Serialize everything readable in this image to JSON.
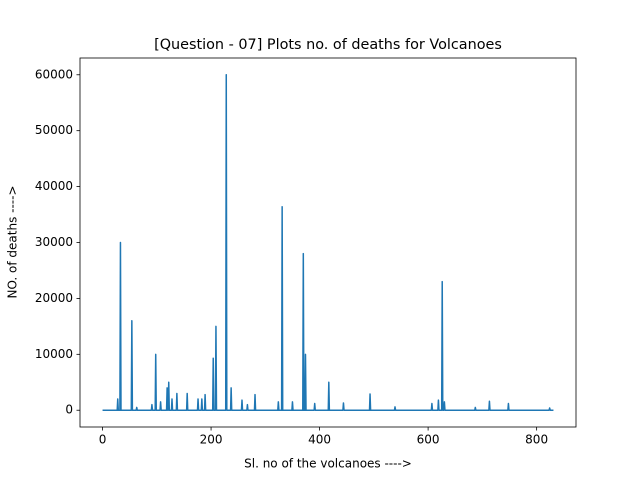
{
  "chart_data": {
    "type": "line",
    "title": "[Question - 07] Plots no. of deaths for Volcanoes",
    "x_label": "Sl. no of the volcanoes ---->",
    "y_label": "NO. of deaths ---->",
    "color": "#1f77b4",
    "x": [
      0,
      27,
      28,
      29,
      32,
      33,
      34,
      53,
      54,
      55,
      62,
      63,
      64,
      90,
      91,
      92,
      97,
      98,
      99,
      106,
      107,
      108,
      118,
      119,
      120,
      121,
      122,
      123,
      127,
      128,
      129,
      136,
      137,
      138,
      155,
      156,
      157,
      175,
      176,
      177,
      182,
      183,
      184,
      188,
      189,
      190,
      203,
      204,
      205,
      208,
      209,
      210,
      227,
      228,
      229,
      236,
      237,
      238,
      256,
      257,
      258,
      266,
      267,
      268,
      280,
      281,
      282,
      323,
      324,
      325,
      330,
      331,
      332,
      349,
      350,
      351,
      369,
      370,
      371,
      373,
      374,
      375,
      390,
      391,
      392,
      416,
      417,
      418,
      443,
      444,
      445,
      492,
      493,
      494,
      538,
      539,
      540,
      606,
      607,
      608,
      618,
      619,
      620,
      625,
      626,
      627,
      629,
      630,
      631,
      686,
      687,
      688,
      712,
      713,
      714,
      747,
      748,
      749,
      823,
      824,
      825,
      831
    ],
    "values": [
      0,
      0,
      2000,
      0,
      0,
      30000,
      0,
      0,
      16000,
      0,
      0,
      500,
      0,
      0,
      1000,
      0,
      0,
      10000,
      0,
      0,
      1500,
      0,
      0,
      4000,
      0,
      0,
      5000,
      0,
      0,
      2000,
      0,
      0,
      3000,
      0,
      0,
      3000,
      0,
      0,
      2000,
      0,
      0,
      2000,
      0,
      0,
      2800,
      0,
      0,
      9300,
      0,
      0,
      15000,
      0,
      0,
      60000,
      0,
      0,
      4000,
      0,
      0,
      1800,
      0,
      0,
      1000,
      0,
      0,
      2800,
      0,
      0,
      1500,
      0,
      0,
      36400,
      0,
      0,
      1500,
      0,
      0,
      28000,
      0,
      0,
      10000,
      0,
      0,
      1200,
      0,
      0,
      5000,
      0,
      0,
      1300,
      0,
      0,
      2900,
      0,
      0,
      600,
      0,
      0,
      1200,
      0,
      0,
      1800,
      0,
      0,
      23000,
      0,
      0,
      1500,
      0,
      0,
      500,
      0,
      0,
      1600,
      0,
      0,
      1200,
      0,
      0,
      400,
      0,
      0
    ],
    "xlim": [
      -41.55,
      872.55
    ],
    "xticks": [
      0,
      200,
      400,
      600,
      800
    ],
    "ylim": [
      -3000,
      63000
    ],
    "yticks": [
      0,
      10000,
      20000,
      30000,
      40000,
      50000,
      60000
    ],
    "grid": false
  }
}
